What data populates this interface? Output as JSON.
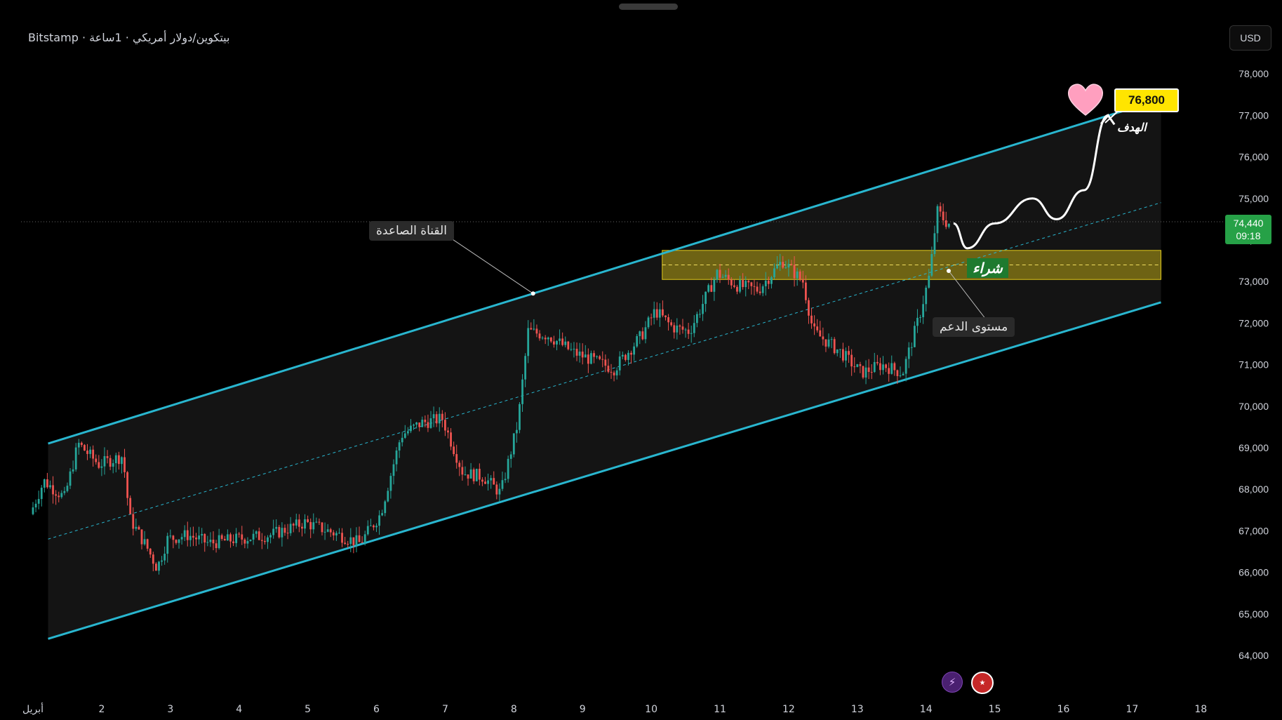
{
  "header": {
    "symbol_title": "Bitstamp · بيتكوين/دولار أمريكي · 1ساعة",
    "currency": "USD"
  },
  "annotations": {
    "channel_label": "القناة الصاعدة",
    "support_label": "مستوى الدعم",
    "buy_label": "شراء",
    "target_word": "الهدف",
    "target_price": "76,800",
    "heart": "heart-icon"
  },
  "price_badge": {
    "price": "74,440",
    "countdown": "09:18",
    "color": "#26a147"
  },
  "bottom_icons": [
    "flash-icon",
    "us-flag-icon"
  ],
  "colors": {
    "background": "#000000",
    "channel_line": "#29b6cf",
    "up_candle": "#26a69a",
    "down_candle": "#ef5350",
    "support_zone": "#b8a414",
    "target_badge": "#ffe500",
    "heart": "#ff9fbf"
  },
  "chart_data": {
    "type": "candlestick",
    "symbol": "BTC/USD",
    "exchange": "Bitstamp",
    "timeframe": "1h",
    "ylim": [
      63500,
      78700
    ],
    "y_ticks": [
      "64,000",
      "65,000",
      "66,000",
      "67,000",
      "68,000",
      "69,000",
      "70,000",
      "71,000",
      "72,000",
      "73,000",
      "74,000",
      "75,000",
      "76,000",
      "77,000",
      "78,000"
    ],
    "x_ticks": [
      "أبريل",
      "2",
      "3",
      "4",
      "5",
      "6",
      "7",
      "8",
      "9",
      "10",
      "11",
      "12",
      "13",
      "14",
      "15",
      "16",
      "17",
      "18"
    ],
    "path_anchors": [
      {
        "day": 1.0,
        "price": 67400
      },
      {
        "day": 1.2,
        "price": 68200
      },
      {
        "day": 1.5,
        "price": 67800
      },
      {
        "day": 1.7,
        "price": 69100
      },
      {
        "day": 2.0,
        "price": 68600
      },
      {
        "day": 2.35,
        "price": 68800
      },
      {
        "day": 2.45,
        "price": 67300
      },
      {
        "day": 2.7,
        "price": 66600
      },
      {
        "day": 2.85,
        "price": 66100
      },
      {
        "day": 3.0,
        "price": 66800
      },
      {
        "day": 3.3,
        "price": 66900
      },
      {
        "day": 3.6,
        "price": 66700
      },
      {
        "day": 4.0,
        "price": 66800
      },
      {
        "day": 4.5,
        "price": 66900
      },
      {
        "day": 5.0,
        "price": 67200
      },
      {
        "day": 5.5,
        "price": 66900
      },
      {
        "day": 5.8,
        "price": 66700
      },
      {
        "day": 6.1,
        "price": 67400
      },
      {
        "day": 6.4,
        "price": 69300
      },
      {
        "day": 6.7,
        "price": 69600
      },
      {
        "day": 7.0,
        "price": 69700
      },
      {
        "day": 7.3,
        "price": 68400
      },
      {
        "day": 7.6,
        "price": 68300
      },
      {
        "day": 7.85,
        "price": 67900
      },
      {
        "day": 8.1,
        "price": 69600
      },
      {
        "day": 8.25,
        "price": 71800
      },
      {
        "day": 8.55,
        "price": 71700
      },
      {
        "day": 8.9,
        "price": 71300
      },
      {
        "day": 9.2,
        "price": 71100
      },
      {
        "day": 9.5,
        "price": 70900
      },
      {
        "day": 9.9,
        "price": 71700
      },
      {
        "day": 10.1,
        "price": 72300
      },
      {
        "day": 10.35,
        "price": 71900
      },
      {
        "day": 10.6,
        "price": 71800
      },
      {
        "day": 10.8,
        "price": 72500
      },
      {
        "day": 11.0,
        "price": 73200
      },
      {
        "day": 11.3,
        "price": 72900
      },
      {
        "day": 11.6,
        "price": 72800
      },
      {
        "day": 11.95,
        "price": 73500
      },
      {
        "day": 12.25,
        "price": 73000
      },
      {
        "day": 12.4,
        "price": 71800
      },
      {
        "day": 12.8,
        "price": 71300
      },
      {
        "day": 13.1,
        "price": 70800
      },
      {
        "day": 13.4,
        "price": 71000
      },
      {
        "day": 13.7,
        "price": 70800
      },
      {
        "day": 13.95,
        "price": 72200
      },
      {
        "day": 14.1,
        "price": 73200
      },
      {
        "day": 14.2,
        "price": 74700
      },
      {
        "day": 14.35,
        "price": 74400
      }
    ],
    "channel": {
      "upper": [
        {
          "day": 1.22,
          "price": 69100
        },
        {
          "day": 17.25,
          "price": 77300
        }
      ],
      "lower": [
        {
          "day": 1.22,
          "price": 64400
        },
        {
          "day": 17.42,
          "price": 72500
        }
      ],
      "mid": [
        {
          "day": 1.22,
          "price": 66800
        },
        {
          "day": 17.42,
          "price": 74900
        }
      ],
      "label": "القناة الصاعدة"
    },
    "support_zone": {
      "from_day": 10.16,
      "to_day": 17.42,
      "low": 73050,
      "high": 73750,
      "label": "مستوى الدعم"
    },
    "projection": [
      {
        "day": 14.4,
        "price": 74400
      },
      {
        "day": 14.6,
        "price": 73800
      },
      {
        "day": 15.0,
        "price": 74400
      },
      {
        "day": 15.55,
        "price": 75000
      },
      {
        "day": 15.9,
        "price": 74500
      },
      {
        "day": 16.3,
        "price": 75200
      },
      {
        "day": 16.65,
        "price": 77000
      }
    ],
    "target": {
      "price": 76800,
      "label": "الهدف"
    },
    "last_price": 74440,
    "countdown": "09:18"
  }
}
